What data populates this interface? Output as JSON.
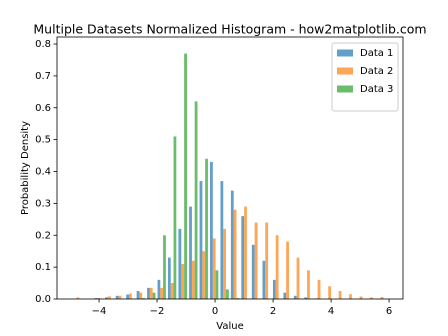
{
  "chart_data": {
    "type": "histogram",
    "title": "Multiple Datasets Normalized Histogram - how2matplotlib.com",
    "x_label": "Value",
    "y_label": "Probability Density",
    "bins": [
      -4.91,
      -4.55,
      -4.19,
      -3.83,
      -3.46,
      -3.1,
      -2.74,
      -2.38,
      -2.02,
      -1.66,
      -1.3,
      -0.93,
      -0.57,
      -0.21,
      0.15,
      0.51,
      0.87,
      1.23,
      1.6,
      1.96,
      2.32,
      2.68,
      3.04,
      3.4,
      3.77,
      4.13,
      4.49,
      4.85,
      5.21,
      5.57,
      5.94
    ],
    "series": [
      {
        "name": "Data 1",
        "color": "#1f77b4",
        "values": [
          0,
          0,
          0.003,
          0.005,
          0.01,
          0.014,
          0.025,
          0.035,
          0.06,
          0.13,
          0.22,
          0.29,
          0.37,
          0.43,
          0.37,
          0.34,
          0.26,
          0.17,
          0.12,
          0.06,
          0.02,
          0.01,
          0.005,
          0.002,
          0,
          0,
          0,
          0,
          0,
          0
        ]
      },
      {
        "name": "Data 2",
        "color": "#ff7f0e",
        "values": [
          0.005,
          0,
          0.003,
          0.008,
          0.01,
          0.017,
          0.02,
          0.035,
          0.035,
          0.05,
          0.11,
          0.12,
          0.15,
          0.19,
          0.22,
          0.28,
          0.29,
          0.24,
          0.24,
          0.2,
          0.18,
          0.13,
          0.09,
          0.06,
          0.04,
          0.025,
          0.015,
          0.008,
          0.005,
          0.006
        ]
      },
      {
        "name": "Data 3",
        "color": "#2ca02c",
        "values": [
          0,
          0,
          0,
          0,
          0,
          0,
          0.003,
          0.02,
          0.2,
          0.51,
          0.77,
          0.62,
          0.44,
          0.09,
          0.03,
          0.003,
          0,
          0,
          0,
          0,
          0,
          0,
          0,
          0,
          0,
          0,
          0,
          0,
          0,
          0
        ]
      }
    ],
    "alpha": 0.7,
    "xlim": [
      -5.45,
      6.48
    ],
    "xticks": [
      {
        "value": -4,
        "label": "−4"
      },
      {
        "value": -2,
        "label": "−2"
      },
      0,
      2,
      4,
      6
    ],
    "ylim": [
      0,
      0.822
    ],
    "yticks": [
      {
        "value": 0,
        "label": "0.0"
      },
      {
        "value": 0.1,
        "label": "0.1"
      },
      {
        "value": 0.2,
        "label": "0.2"
      },
      {
        "value": 0.3,
        "label": "0.3"
      },
      {
        "value": 0.4,
        "label": "0.4"
      },
      {
        "value": 0.5,
        "label": "0.5"
      },
      {
        "value": 0.6,
        "label": "0.6"
      },
      {
        "value": 0.7,
        "label": "0.7"
      },
      {
        "value": 0.8,
        "label": "0.8"
      }
    ],
    "legend": "upper-right"
  }
}
